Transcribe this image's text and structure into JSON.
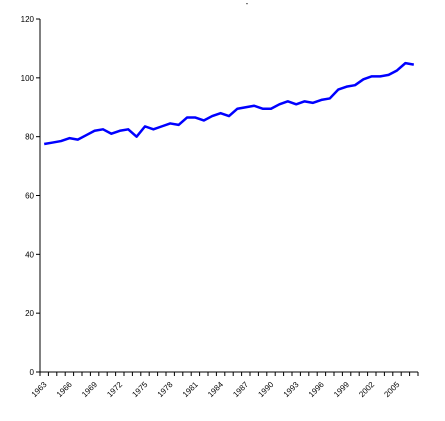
{
  "chart_data": {
    "type": "line",
    "title": "-",
    "categories": [
      "1963",
      null,
      null,
      "1966",
      null,
      null,
      "1969",
      null,
      null,
      "1972",
      null,
      null,
      "1975",
      null,
      null,
      "1978",
      null,
      null,
      "1981",
      null,
      null,
      "1984",
      null,
      null,
      "1987",
      null,
      null,
      "1990",
      null,
      null,
      "1993",
      null,
      null,
      "1996",
      null,
      null,
      "1999",
      null,
      null,
      "2002",
      null,
      null,
      "2005",
      null,
      null
    ],
    "series": [
      {
        "name": null,
        "color": "#0000ff",
        "values": [
          77.5,
          78,
          78.5,
          79.5,
          79,
          80.5,
          82,
          82.5,
          81,
          82,
          82.5,
          80,
          83.5,
          82.5,
          83.5,
          84.5,
          84,
          86.5,
          86.5,
          85.5,
          87,
          88,
          87,
          89.5,
          90,
          90.5,
          89.5,
          89.5,
          91,
          92,
          91,
          92,
          91.5,
          92.5,
          93,
          96,
          97,
          97.5,
          99.5,
          100.5,
          100.5,
          101,
          102.5,
          105,
          104.5
        ]
      }
    ],
    "ylim": [
      0,
      120
    ],
    "yticks": [
      0,
      20,
      40,
      60,
      80,
      100,
      120
    ],
    "grid": false
  }
}
